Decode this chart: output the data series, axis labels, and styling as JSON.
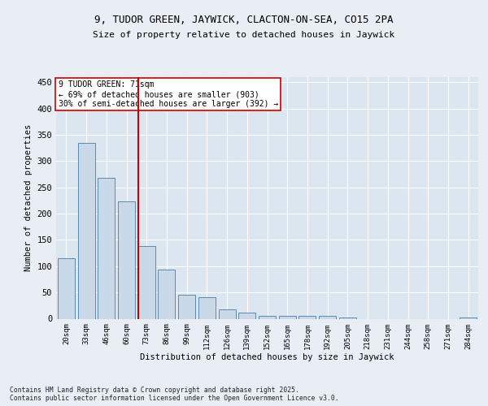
{
  "title1": "9, TUDOR GREEN, JAYWICK, CLACTON-ON-SEA, CO15 2PA",
  "title2": "Size of property relative to detached houses in Jaywick",
  "xlabel": "Distribution of detached houses by size in Jaywick",
  "ylabel": "Number of detached properties",
  "categories": [
    "20sqm",
    "33sqm",
    "46sqm",
    "60sqm",
    "73sqm",
    "86sqm",
    "99sqm",
    "112sqm",
    "126sqm",
    "139sqm",
    "152sqm",
    "165sqm",
    "178sqm",
    "192sqm",
    "205sqm",
    "218sqm",
    "231sqm",
    "244sqm",
    "258sqm",
    "271sqm",
    "284sqm"
  ],
  "values": [
    115,
    335,
    268,
    223,
    138,
    93,
    46,
    41,
    18,
    11,
    6,
    5,
    5,
    6,
    3,
    0,
    0,
    0,
    0,
    0,
    3
  ],
  "bar_color": "#c9d9e8",
  "bar_edge_color": "#5a8ab0",
  "vline_color": "#cc0000",
  "annotation_text": "9 TUDOR GREEN: 71sqm\n← 69% of detached houses are smaller (903)\n30% of semi-detached houses are larger (392) →",
  "annotation_box_color": "#ffffff",
  "annotation_box_edge": "#cc0000",
  "background_color": "#e8eef4",
  "plot_background": "#dce6f0",
  "grid_color": "#ffffff",
  "footnote": "Contains HM Land Registry data © Crown copyright and database right 2025.\nContains public sector information licensed under the Open Government Licence v3.0.",
  "ylim": [
    0,
    460
  ],
  "yticks": [
    0,
    50,
    100,
    150,
    200,
    250,
    300,
    350,
    400,
    450
  ]
}
